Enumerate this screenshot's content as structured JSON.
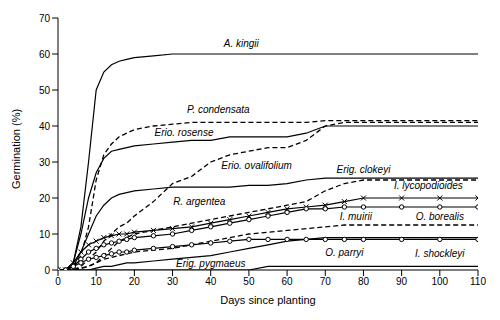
{
  "chart_data": {
    "type": "line",
    "x_label": "Days since planting",
    "y_label": "Germination (%)",
    "xlim": [
      0,
      110
    ],
    "xticks": [
      0,
      10,
      20,
      30,
      40,
      50,
      60,
      70,
      80,
      90,
      100,
      110
    ],
    "ylim": [
      0,
      70
    ],
    "yticks": [
      0,
      10,
      20,
      30,
      40,
      50,
      60,
      70
    ],
    "grid": false,
    "x": [
      0,
      2,
      4,
      6,
      8,
      10,
      12,
      14,
      16,
      18,
      20,
      25,
      30,
      35,
      40,
      45,
      50,
      55,
      60,
      65,
      70,
      75,
      80,
      90,
      100,
      110
    ],
    "series": [
      {
        "name": "A. kingii",
        "color": "#000000",
        "line_style": "solid",
        "values": [
          0,
          0,
          2,
          12,
          30,
          50,
          55,
          57,
          58,
          58.5,
          59,
          59.5,
          60,
          60,
          60,
          60,
          60,
          60,
          60,
          60,
          60,
          60,
          60,
          60,
          60,
          60
        ]
      },
      {
        "name": "P. condensata",
        "color": "#000000",
        "line_style": "dashed",
        "values": [
          0,
          0,
          1,
          4,
          12,
          25,
          32,
          35,
          37,
          38,
          39,
          40,
          40.5,
          41,
          41,
          41,
          41,
          41,
          41,
          41,
          41.5,
          41.5,
          41.5,
          41.5,
          41.5,
          41.5
        ]
      },
      {
        "name": "Erio. rosense",
        "color": "#000000",
        "line_style": "solid",
        "values": [
          0,
          0,
          2,
          10,
          20,
          27,
          31,
          33,
          33.5,
          34,
          34.5,
          35,
          35.5,
          36,
          36,
          37,
          37,
          37,
          37,
          38,
          40,
          40,
          40,
          40,
          40,
          40
        ]
      },
      {
        "name": "Erio. ovalifolium",
        "color": "#000000",
        "line_style": "dashed",
        "values": [
          0,
          0,
          0,
          1,
          3,
          5,
          8,
          10,
          12,
          13,
          15,
          19,
          24,
          26,
          30,
          32,
          33,
          34,
          34,
          36,
          40,
          41,
          41,
          41,
          41,
          41
        ]
      },
      {
        "name": "Erig. clokeyi",
        "color": "#000000",
        "line_style": "solid",
        "values": [
          0,
          0,
          1,
          5,
          10,
          15,
          18,
          20,
          21,
          21.5,
          22,
          22.5,
          23,
          23,
          23,
          23,
          23.5,
          23.5,
          24,
          25,
          25.5,
          25.5,
          25.5,
          25.5,
          25.5,
          25.5
        ]
      },
      {
        "name": "R. argentea",
        "color": "#000000",
        "line_style": "dashed",
        "values": [
          0,
          0,
          0,
          0.5,
          1,
          2,
          4,
          6,
          8,
          9,
          10,
          11,
          12,
          13,
          14,
          15,
          16,
          17,
          18,
          19,
          22,
          24,
          25,
          25,
          25,
          25
        ]
      },
      {
        "name": "I. lycopodioides",
        "color": "#000000",
        "line_style": "solid",
        "marker": "x",
        "values": [
          0,
          0,
          2,
          5,
          7,
          8,
          9,
          9.5,
          10,
          10,
          10.5,
          11,
          11.5,
          12,
          13,
          14,
          15,
          16,
          17,
          17.5,
          18,
          19,
          20,
          20,
          20,
          20
        ]
      },
      {
        "name": "O. borealis",
        "color": "#000000",
        "line_style": "solid",
        "marker": "circle",
        "values": [
          0,
          0,
          1,
          3,
          5,
          6,
          7,
          7.5,
          8,
          8.5,
          9,
          9.5,
          10,
          11,
          12,
          13,
          14,
          15,
          16,
          17,
          17,
          17.5,
          17.5,
          17.5,
          17.5,
          17.5
        ]
      },
      {
        "name": "I. muirii",
        "color": "#000000",
        "line_style": "dashed",
        "values": [
          0,
          0,
          0,
          0.5,
          1,
          2,
          3,
          3.5,
          4,
          4.5,
          5,
          5.5,
          6,
          7,
          8,
          9,
          10,
          10.5,
          11,
          11.5,
          12,
          12.5,
          12.5,
          12.5,
          12.5,
          12.5
        ]
      },
      {
        "name": "O. parryi",
        "color": "#000000",
        "line_style": "solid",
        "marker": "circle",
        "values": [
          0,
          0,
          1,
          2,
          3,
          3.5,
          4,
          4.5,
          5,
          5,
          5.5,
          6,
          6.5,
          7,
          7.5,
          8,
          8.5,
          8.5,
          8.5,
          8.5,
          8.5,
          8.5,
          8.5,
          8.5,
          8.5,
          8.5
        ]
      },
      {
        "name": "Erig. pygmaeus",
        "color": "#000000",
        "line_style": "solid",
        "values": [
          0,
          0,
          0,
          0,
          0,
          0.5,
          1,
          1,
          1.5,
          2,
          2,
          2.5,
          3,
          3.5,
          4,
          5,
          6,
          7,
          8,
          8.5,
          9,
          9,
          9,
          9,
          9,
          9
        ]
      },
      {
        "name": "I. shockleyi",
        "color": "#000000",
        "line_style": "solid",
        "values": [
          0,
          0,
          0,
          0,
          0,
          0,
          0,
          0,
          0,
          0,
          0,
          0,
          0,
          0,
          0,
          0,
          0,
          1,
          1,
          1,
          1,
          1,
          1,
          1,
          1,
          1
        ]
      }
    ]
  }
}
